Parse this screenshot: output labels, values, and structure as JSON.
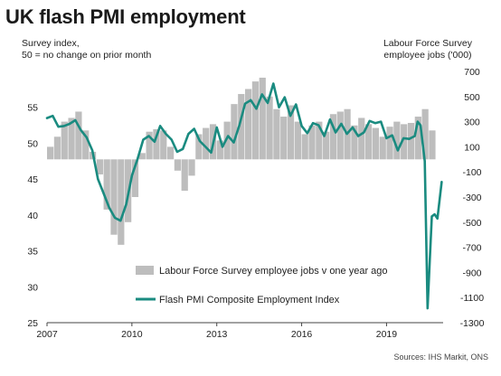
{
  "header": {
    "title": "UK flash PMI employment",
    "left_axis_title_line1": "Survey index,",
    "left_axis_title_line2": "50 = no change on prior month",
    "right_axis_title_line1": "Labour Force Survey",
    "right_axis_title_line2": "employee jobs  ('000)"
  },
  "source": "Sources: IHS Markit, ONS",
  "colors": {
    "line": "#1a8b80",
    "bars": "#bdbdbd",
    "axis": "#444444"
  },
  "chart_data": {
    "type": "line+bar",
    "x_range": [
      2007.0,
      2021.0
    ],
    "x_ticks": [
      2007,
      2010,
      2013,
      2016,
      2019
    ],
    "left_axis": {
      "range": [
        25,
        60
      ],
      "ticks": [
        25,
        30,
        35,
        40,
        45,
        50,
        55
      ]
    },
    "right_axis": {
      "range": [
        -1300,
        700
      ],
      "ticks": [
        700,
        500,
        300,
        100,
        -100,
        -300,
        -500,
        -700,
        -900,
        -1100,
        -1300
      ]
    },
    "legend": {
      "position": "bottom-center",
      "bars_label": "Labour Force Survey employee jobs v one year ago",
      "line_label": "Flash PMI Composite Employment Index"
    },
    "series": [
      {
        "name": "Labour Force Survey employee jobs v one year ago",
        "kind": "bar",
        "axis": "right",
        "x": [
          2007.0,
          2007.25,
          2007.5,
          2007.75,
          2008.0,
          2008.25,
          2008.5,
          2008.75,
          2009.0,
          2009.25,
          2009.5,
          2009.75,
          2010.0,
          2010.25,
          2010.5,
          2010.75,
          2011.0,
          2011.25,
          2011.5,
          2011.75,
          2012.0,
          2012.25,
          2012.5,
          2012.75,
          2013.0,
          2013.25,
          2013.5,
          2013.75,
          2014.0,
          2014.25,
          2014.5,
          2014.75,
          2015.0,
          2015.25,
          2015.5,
          2015.75,
          2016.0,
          2016.25,
          2016.5,
          2016.75,
          2017.0,
          2017.25,
          2017.5,
          2017.75,
          2018.0,
          2018.25,
          2018.5,
          2018.75,
          2019.0,
          2019.25,
          2019.5,
          2019.75,
          2020.0,
          2020.25,
          2020.5
        ],
        "values": [
          100,
          180,
          300,
          330,
          380,
          230,
          60,
          -120,
          -400,
          -600,
          -680,
          -500,
          -300,
          50,
          220,
          240,
          230,
          100,
          -90,
          -250,
          -130,
          200,
          250,
          280,
          150,
          300,
          440,
          520,
          560,
          620,
          650,
          500,
          400,
          340,
          430,
          300,
          200,
          270,
          300,
          220,
          360,
          380,
          400,
          270,
          330,
          280,
          250,
          180,
          260,
          300,
          280,
          290,
          340,
          400,
          230
        ]
      },
      {
        "name": "Flash PMI Composite Employment Index",
        "kind": "line",
        "axis": "left",
        "x": [
          2007.0,
          2007.2,
          2007.4,
          2007.6,
          2007.8,
          2008.0,
          2008.2,
          2008.4,
          2008.6,
          2008.8,
          2009.0,
          2009.2,
          2009.4,
          2009.6,
          2009.8,
          2010.0,
          2010.2,
          2010.4,
          2010.6,
          2010.8,
          2011.0,
          2011.2,
          2011.4,
          2011.6,
          2011.8,
          2012.0,
          2012.2,
          2012.4,
          2012.6,
          2012.8,
          2013.0,
          2013.2,
          2013.4,
          2013.6,
          2013.8,
          2014.0,
          2014.2,
          2014.4,
          2014.6,
          2014.8,
          2015.0,
          2015.2,
          2015.4,
          2015.6,
          2015.8,
          2016.0,
          2016.2,
          2016.4,
          2016.6,
          2016.8,
          2017.0,
          2017.2,
          2017.4,
          2017.6,
          2017.8,
          2018.0,
          2018.2,
          2018.4,
          2018.6,
          2018.8,
          2019.0,
          2019.2,
          2019.4,
          2019.6,
          2019.8,
          2020.0,
          2020.1,
          2020.2,
          2020.35,
          2020.45,
          2020.6,
          2020.7,
          2020.8,
          2020.95
        ],
        "values": [
          53.5,
          53.8,
          52.3,
          52.4,
          52.7,
          53.2,
          51.8,
          50.8,
          49.0,
          45.0,
          43.0,
          41.0,
          39.6,
          39.2,
          41.5,
          45.5,
          47.8,
          50.5,
          51.0,
          50.2,
          52.4,
          51.3,
          50.5,
          48.8,
          49.2,
          51.3,
          52.0,
          50.3,
          49.5,
          48.7,
          52.2,
          49.5,
          51.0,
          50.1,
          52.5,
          55.5,
          56.0,
          54.8,
          56.8,
          55.6,
          58.3,
          55.0,
          56.4,
          53.8,
          55.4,
          52.4,
          51.4,
          52.8,
          52.5,
          51.0,
          53.3,
          51.5,
          52.7,
          51.3,
          52.2,
          51.0,
          51.5,
          53.1,
          52.8,
          53.0,
          50.7,
          51.1,
          49.0,
          50.7,
          50.6,
          51.0,
          53.0,
          52.5,
          47.5,
          27.0,
          39.8,
          40.1,
          39.5,
          44.6
        ]
      }
    ]
  }
}
